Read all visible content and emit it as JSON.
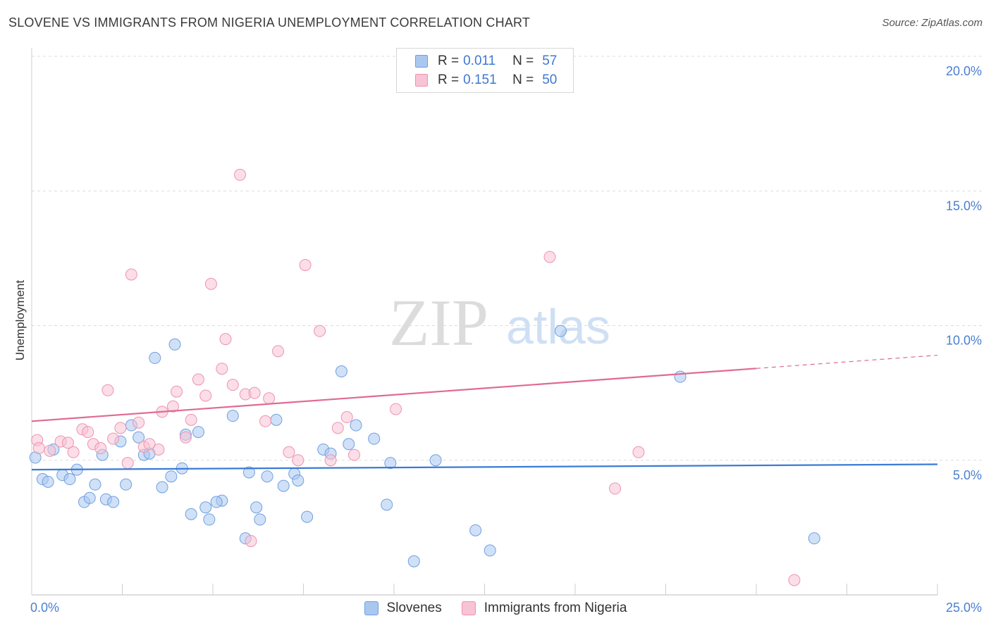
{
  "header": {
    "title": "SLOVENE VS IMMIGRANTS FROM NIGERIA UNEMPLOYMENT CORRELATION CHART",
    "source": "Source: ZipAtlas.com"
  },
  "watermark": {
    "zip": "ZIP",
    "atlas": "atlas"
  },
  "legend": {
    "rows": [
      {
        "r_label": "R =",
        "r_value": "0.011",
        "n_label": "N =",
        "n_value": "57",
        "color": "#a9c8f0",
        "border": "#6f9fe0"
      },
      {
        "r_label": "R =",
        "r_value": "0.151",
        "n_label": "N =",
        "n_value": "50",
        "color": "#f8c3d4",
        "border": "#ee93b0"
      }
    ]
  },
  "bottom_legend": {
    "items": [
      {
        "label": "Slovenes",
        "color": "#a9c8f0",
        "border": "#6f9fe0"
      },
      {
        "label": "Immigrants from Nigeria",
        "color": "#f8c3d4",
        "border": "#ee93b0"
      }
    ]
  },
  "chart_data": {
    "type": "scatter",
    "title": "SLOVENE VS IMMIGRANTS FROM NIGERIA UNEMPLOYMENT CORRELATION CHART",
    "xlabel": "",
    "ylabel": "Unemployment",
    "xlim": [
      0,
      25
    ],
    "ylim": [
      0,
      20
    ],
    "x_tick_labels": [
      "0.0%",
      "25.0%"
    ],
    "y_tick_labels": [
      {
        "value": 5,
        "label": "5.0%"
      },
      {
        "value": 10,
        "label": "10.0%"
      },
      {
        "value": 15,
        "label": "15.0%"
      },
      {
        "value": 20,
        "label": "20.0%"
      }
    ],
    "grid": true,
    "series": [
      {
        "name": "Slovenes",
        "color": "#a9c8f0",
        "stroke": "#6f9fe0",
        "trend": {
          "x": [
            0,
            25
          ],
          "y": [
            4.65,
            4.85
          ],
          "color": "#3a7bd5",
          "dashed_from": null
        },
        "points": [
          [
            0.1,
            5.1
          ],
          [
            0.3,
            4.3
          ],
          [
            0.45,
            4.2
          ],
          [
            0.6,
            5.4
          ],
          [
            0.85,
            4.45
          ],
          [
            1.05,
            4.3
          ],
          [
            1.25,
            4.65
          ],
          [
            1.45,
            3.45
          ],
          [
            1.6,
            3.6
          ],
          [
            1.75,
            4.1
          ],
          [
            1.95,
            5.2
          ],
          [
            2.05,
            3.55
          ],
          [
            2.25,
            3.45
          ],
          [
            2.45,
            5.7
          ],
          [
            2.6,
            4.1
          ],
          [
            2.75,
            6.3
          ],
          [
            2.95,
            5.85
          ],
          [
            3.1,
            5.2
          ],
          [
            3.25,
            5.25
          ],
          [
            3.4,
            8.8
          ],
          [
            3.6,
            4.0
          ],
          [
            3.85,
            4.4
          ],
          [
            3.95,
            9.3
          ],
          [
            4.15,
            4.7
          ],
          [
            4.25,
            5.95
          ],
          [
            4.4,
            3.0
          ],
          [
            4.6,
            6.05
          ],
          [
            4.8,
            3.25
          ],
          [
            4.9,
            2.8
          ],
          [
            5.25,
            3.5
          ],
          [
            5.1,
            3.45
          ],
          [
            5.55,
            6.65
          ],
          [
            5.9,
            2.1
          ],
          [
            6.0,
            4.55
          ],
          [
            6.2,
            3.25
          ],
          [
            6.3,
            2.8
          ],
          [
            6.5,
            4.4
          ],
          [
            6.75,
            6.5
          ],
          [
            6.95,
            4.05
          ],
          [
            7.25,
            4.5
          ],
          [
            7.35,
            4.25
          ],
          [
            7.6,
            2.9
          ],
          [
            8.05,
            5.4
          ],
          [
            8.25,
            5.25
          ],
          [
            8.55,
            8.3
          ],
          [
            8.75,
            5.6
          ],
          [
            8.95,
            6.3
          ],
          [
            9.45,
            5.8
          ],
          [
            9.8,
            3.35
          ],
          [
            9.9,
            4.9
          ],
          [
            10.55,
            1.25
          ],
          [
            11.15,
            5.0
          ],
          [
            12.25,
            2.4
          ],
          [
            12.65,
            1.65
          ],
          [
            14.6,
            9.8
          ],
          [
            17.9,
            8.1
          ],
          [
            21.6,
            2.1
          ]
        ]
      },
      {
        "name": "Immigrants from Nigeria",
        "color": "#f8c3d4",
        "stroke": "#ee93b0",
        "trend": {
          "x": [
            0,
            25
          ],
          "y": [
            6.45,
            8.9
          ],
          "color": "#e06a93",
          "dashed_from": 20.0
        },
        "points": [
          [
            0.15,
            5.75
          ],
          [
            0.2,
            5.45
          ],
          [
            0.5,
            5.35
          ],
          [
            0.8,
            5.7
          ],
          [
            1.0,
            5.65
          ],
          [
            1.15,
            5.3
          ],
          [
            1.4,
            6.15
          ],
          [
            1.55,
            6.05
          ],
          [
            1.7,
            5.6
          ],
          [
            1.9,
            5.45
          ],
          [
            2.1,
            7.6
          ],
          [
            2.25,
            5.8
          ],
          [
            2.45,
            6.2
          ],
          [
            2.65,
            4.9
          ],
          [
            2.75,
            11.9
          ],
          [
            2.95,
            6.4
          ],
          [
            3.1,
            5.5
          ],
          [
            3.25,
            5.6
          ],
          [
            3.5,
            5.4
          ],
          [
            3.6,
            6.8
          ],
          [
            3.9,
            7.0
          ],
          [
            4.0,
            7.55
          ],
          [
            4.25,
            5.85
          ],
          [
            4.4,
            6.5
          ],
          [
            4.6,
            8.0
          ],
          [
            4.8,
            7.4
          ],
          [
            4.95,
            11.55
          ],
          [
            5.25,
            8.4
          ],
          [
            5.35,
            9.5
          ],
          [
            5.55,
            7.8
          ],
          [
            5.75,
            15.6
          ],
          [
            5.9,
            7.45
          ],
          [
            6.05,
            2.0
          ],
          [
            6.15,
            7.5
          ],
          [
            6.45,
            6.45
          ],
          [
            6.55,
            7.3
          ],
          [
            6.8,
            9.05
          ],
          [
            7.1,
            5.3
          ],
          [
            7.35,
            5.0
          ],
          [
            7.55,
            12.25
          ],
          [
            7.95,
            9.8
          ],
          [
            8.25,
            5.0
          ],
          [
            8.45,
            6.2
          ],
          [
            8.7,
            6.6
          ],
          [
            8.9,
            5.2
          ],
          [
            10.05,
            6.9
          ],
          [
            14.3,
            12.55
          ],
          [
            16.1,
            3.95
          ],
          [
            16.75,
            5.3
          ],
          [
            21.05,
            0.55
          ]
        ]
      }
    ]
  }
}
